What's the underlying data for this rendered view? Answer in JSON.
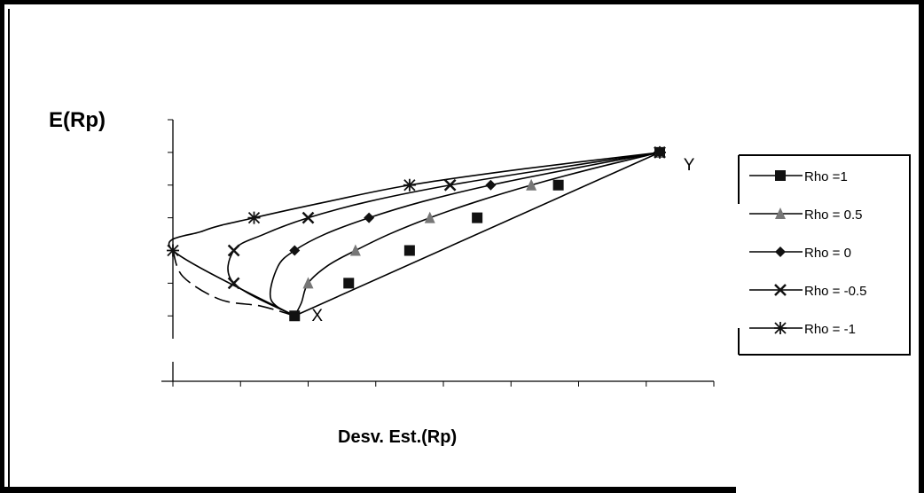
{
  "chart_data": {
    "type": "line",
    "title": "",
    "ylabel": "E(Rp)",
    "xlabel": "Desv. Est.(Rp)",
    "xlim": [
      0,
      8
    ],
    "ylim": [
      0,
      8
    ],
    "x_tick_count": 9,
    "y_tick_count": 9,
    "grid": false,
    "legend_position": "right",
    "point_labels": [
      {
        "text": "X",
        "x": 2.05,
        "y": 1.85
      },
      {
        "text": "Y",
        "x": 7.55,
        "y": 6.45
      }
    ],
    "series": [
      {
        "name": "Rho =1",
        "marker": "square",
        "dashed": false,
        "points": [
          [
            1.8,
            2.0
          ],
          [
            2.6,
            3.0
          ],
          [
            3.5,
            4.0
          ],
          [
            4.5,
            5.0
          ],
          [
            5.7,
            6.0
          ],
          [
            7.2,
            7.0
          ]
        ],
        "curve": [
          [
            1.8,
            2.0
          ],
          [
            7.2,
            7.0
          ]
        ]
      },
      {
        "name": "Rho = 0.5",
        "marker": "triangle",
        "dashed": false,
        "points": [
          [
            2.0,
            3.0
          ],
          [
            2.7,
            4.0
          ],
          [
            3.8,
            5.0
          ],
          [
            5.3,
            6.0
          ],
          [
            7.2,
            7.0
          ]
        ],
        "curve": [
          [
            1.8,
            2.0
          ],
          [
            1.9,
            2.4
          ],
          [
            2.0,
            3.0
          ],
          [
            2.3,
            3.55
          ],
          [
            2.7,
            4.0
          ],
          [
            3.2,
            4.5
          ],
          [
            3.8,
            5.0
          ],
          [
            4.5,
            5.5
          ],
          [
            5.3,
            6.0
          ],
          [
            6.2,
            6.5
          ],
          [
            7.2,
            7.0
          ]
        ]
      },
      {
        "name": "Rho =  0",
        "marker": "diamond",
        "dashed": false,
        "points": [
          [
            1.8,
            4.0
          ],
          [
            2.9,
            5.0
          ],
          [
            4.7,
            6.0
          ],
          [
            7.2,
            7.0
          ]
        ],
        "curve": [
          [
            1.8,
            2.0
          ],
          [
            1.45,
            2.5
          ],
          [
            1.55,
            3.5
          ],
          [
            1.8,
            4.0
          ],
          [
            2.25,
            4.5
          ],
          [
            2.9,
            5.0
          ],
          [
            3.7,
            5.5
          ],
          [
            4.7,
            6.0
          ],
          [
            5.9,
            6.5
          ],
          [
            7.2,
            7.0
          ]
        ]
      },
      {
        "name": "Rho =  -0.5",
        "marker": "x",
        "dashed": false,
        "points": [
          [
            0.9,
            3.0
          ],
          [
            0.9,
            4.0
          ],
          [
            2.0,
            5.0
          ],
          [
            4.1,
            6.0
          ],
          [
            7.2,
            7.0
          ]
        ],
        "curve": [
          [
            1.8,
            2.0
          ],
          [
            0.9,
            3.0
          ],
          [
            0.9,
            4.0
          ],
          [
            1.35,
            4.5
          ],
          [
            2.0,
            5.0
          ],
          [
            2.9,
            5.5
          ],
          [
            4.1,
            6.0
          ],
          [
            5.6,
            6.5
          ],
          [
            7.2,
            7.0
          ]
        ]
      },
      {
        "name": "Rho = -1",
        "marker": "asterisk",
        "dashed": false,
        "points": [
          [
            0.0,
            4.0
          ],
          [
            1.2,
            5.0
          ],
          [
            3.5,
            6.0
          ],
          [
            7.2,
            7.0
          ]
        ],
        "curve": [
          [
            1.8,
            2.0
          ],
          [
            0.0,
            4.0
          ],
          [
            0.45,
            4.6
          ],
          [
            1.2,
            5.0
          ],
          [
            2.3,
            5.5
          ],
          [
            3.5,
            6.0
          ],
          [
            5.2,
            6.5
          ],
          [
            7.2,
            7.0
          ]
        ]
      }
    ],
    "frontier_segment": {
      "dashed": true,
      "points": [
        [
          1.8,
          2.0
        ],
        [
          1.3,
          2.3
        ],
        [
          0.7,
          2.5
        ],
        [
          0.15,
          3.2
        ],
        [
          0.0,
          4.0
        ]
      ]
    }
  }
}
